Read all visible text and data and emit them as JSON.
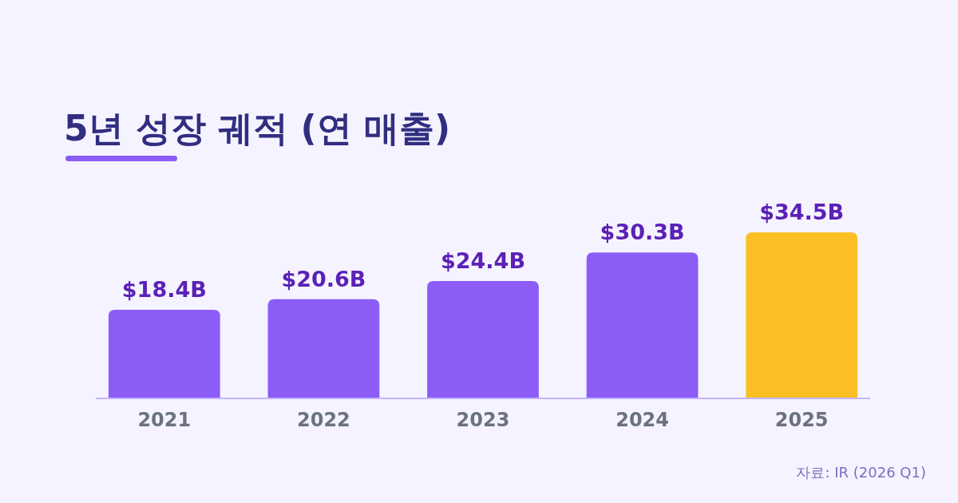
{
  "chart_data": {
    "type": "bar",
    "title": "5년 성장 궤적 (연 매출)",
    "categories": [
      "2021",
      "2022",
      "2023",
      "2024",
      "2025"
    ],
    "values": [
      18.4,
      20.6,
      24.4,
      30.3,
      34.5
    ],
    "colors": [
      "#8b5cf6",
      "#8b5cf6",
      "#8b5cf6",
      "#8b5cf6",
      "#fbbf24"
    ],
    "value_labels": [
      "$18.4B",
      "$20.6B",
      "$24.4B",
      "$30.3B",
      "$34.5B"
    ],
    "annotations": [
      "자료: IR (2026 Q1)"
    ],
    "grid": false
  }
}
